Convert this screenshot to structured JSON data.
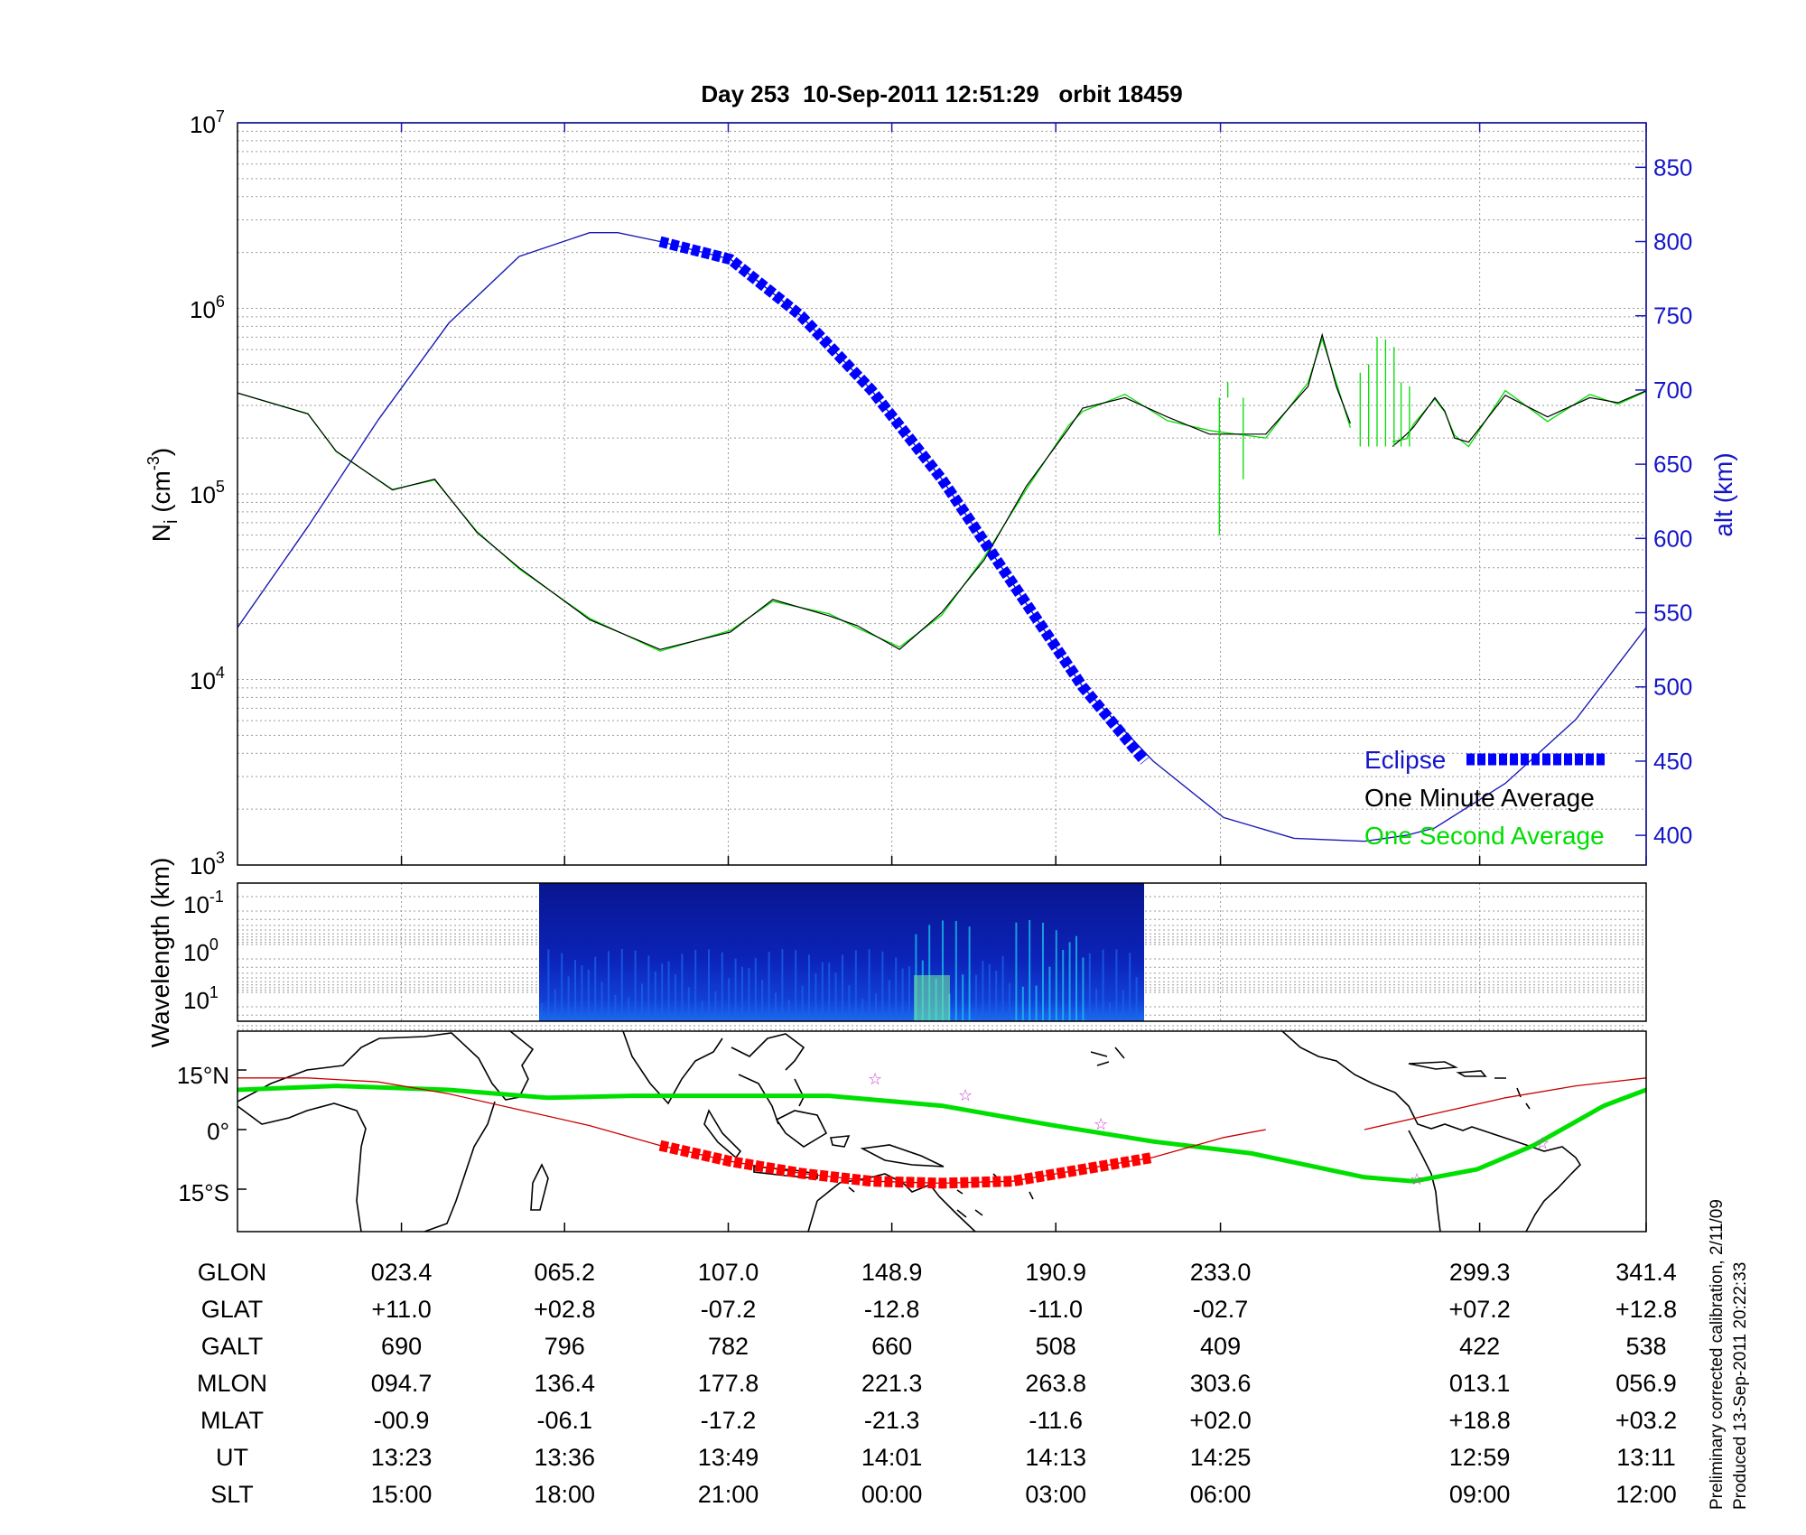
{
  "chart_data": [
    {
      "type": "line",
      "title": "Day 253  10-Sep-2011 12:51:29   orbit 18459",
      "ylabel_main": "N",
      "ylabel_sub": "i",
      "ylabel_unit_open": " (cm",
      "ylabel_unit_exp": "-3",
      "ylabel_unit_close": ")",
      "y_scale": "log",
      "ylim": [
        1000,
        10000000
      ],
      "y_tick_exponents": [
        "3",
        "4",
        "5",
        "6",
        "7"
      ],
      "y_tick_base": "10",
      "y2label": "alt (km)",
      "y2lim": [
        380,
        880
      ],
      "y2_ticks": [
        "400",
        "450",
        "500",
        "550",
        "600",
        "650",
        "700",
        "750",
        "800",
        "850"
      ],
      "x_ticks_glon": [
        "023.4",
        "065.2",
        "107.0",
        "148.9",
        "190.9",
        "233.0",
        "299.3",
        "341.4"
      ],
      "grid": true,
      "legend_position": "bottom-right",
      "colors": {
        "eclipse": "#0000ff",
        "minute": "#000000",
        "second": "#00dd00",
        "altitude": "#1a1ab4"
      },
      "series": [
        {
          "name": "One Minute Average",
          "x": [
            0,
            0.05,
            0.07,
            0.11,
            0.14,
            0.17,
            0.2,
            0.25,
            0.3,
            0.35,
            0.38,
            0.42,
            0.44,
            0.47,
            0.5,
            0.53,
            0.56,
            0.59,
            0.6,
            0.63,
            0.66,
            0.69,
            0.73,
            0.76,
            0.77,
            0.78,
            0.79,
            0.8,
            0.81,
            0.82,
            0.83,
            0.835,
            0.85,
            0.857,
            0.864,
            0.874,
            0.9,
            0.93,
            0.96,
            0.98,
            1.0
          ],
          "values": [
            350000,
            270000,
            170000,
            105000,
            120000,
            62000,
            40000,
            21000,
            14500,
            18000,
            27000,
            22000,
            19500,
            14500,
            23000,
            44000,
            110000,
            225000,
            290000,
            330000,
            260000,
            210000,
            210000,
            380000,
            720000,
            380000,
            240000,
            160000,
            155000,
            180000,
            210000,
            230000,
            330000,
            280000,
            200000,
            190000,
            340000,
            260000,
            330000,
            310000,
            360000
          ]
        },
        {
          "name": "Eclipse",
          "x": [
            0.3,
            0.35,
            0.4,
            0.45,
            0.5,
            0.55,
            0.6,
            0.644
          ],
          "altitude_km": [
            800,
            788,
            750,
            700,
            640,
            570,
            500,
            450
          ]
        },
        {
          "name": "altitude",
          "x": [
            0,
            0.05,
            0.1,
            0.15,
            0.2,
            0.25,
            0.27,
            0.3,
            0.35,
            0.4,
            0.45,
            0.5,
            0.55,
            0.6,
            0.65,
            0.7,
            0.75,
            0.8,
            0.83,
            0.85,
            0.9,
            0.95,
            1.0
          ],
          "values": [
            540,
            608,
            680,
            745,
            790,
            806,
            806,
            800,
            788,
            750,
            700,
            640,
            570,
            500,
            450,
            412,
            398,
            396,
            400,
            405,
            435,
            478,
            540
          ]
        }
      ]
    },
    {
      "type": "heatmap",
      "ylabel": "Wavelength (km)",
      "y_tick_base": "10",
      "y_tick_exponents": [
        "-1",
        "0",
        "1"
      ]
    },
    {
      "type": "line",
      "panel": "map",
      "y_ticks": [
        "15°N",
        "0°",
        "15°S"
      ],
      "colors": {
        "magnetic_equator": "#00e000",
        "orbit_eclipse": "#ff0000",
        "orbit_track": "#c80000",
        "stars": "#cc44cc",
        "coast": "#000000"
      },
      "series": [
        {
          "name": "magnetic equator",
          "x": [
            0,
            0.07,
            0.15,
            0.22,
            0.28,
            0.35,
            0.42,
            0.5,
            0.58,
            0.65,
            0.72,
            0.8,
            0.835,
            0.88,
            0.92,
            0.97,
            1.0
          ],
          "lat": [
            10,
            11,
            10,
            8,
            8.5,
            8.5,
            8.5,
            6,
            1,
            -3,
            -6,
            -12,
            -13,
            -10,
            -4,
            6,
            10
          ]
        },
        {
          "name": "orbit",
          "x": [
            0,
            0.05,
            0.1,
            0.15,
            0.2,
            0.25,
            0.3,
            0.35,
            0.4,
            0.45,
            0.5,
            0.55,
            0.6,
            0.65,
            0.7,
            0.73
          ],
          "lat": [
            13,
            13,
            12,
            9,
            5,
            1,
            -4,
            -8,
            -11,
            -13,
            -13.5,
            -13,
            -10,
            -7,
            -2,
            0
          ]
        },
        {
          "name": "orbit (end segment)",
          "x": [
            0.8,
            0.85,
            0.9,
            0.95,
            1.0
          ],
          "lat": [
            0,
            4,
            8,
            11,
            13
          ]
        }
      ]
    }
  ],
  "legend": {
    "eclipse": "Eclipse",
    "minute": "One Minute Average",
    "second": "One Second Average"
  },
  "table": {
    "labels": [
      "GLON",
      "GLAT",
      "GALT",
      "MLON",
      "MLAT",
      "UT",
      "SLT"
    ],
    "columns": [
      [
        "023.4",
        "+11.0",
        "690",
        "094.7",
        "-00.9",
        "13:23",
        "15:00"
      ],
      [
        "065.2",
        "+02.8",
        "796",
        "136.4",
        "-06.1",
        "13:36",
        "18:00"
      ],
      [
        "107.0",
        "-07.2",
        "782",
        "177.8",
        "-17.2",
        "13:49",
        "21:00"
      ],
      [
        "148.9",
        "-12.8",
        "660",
        "221.3",
        "-21.3",
        "14:01",
        "00:00"
      ],
      [
        "190.9",
        "-11.0",
        "508",
        "263.8",
        "-11.6",
        "14:13",
        "03:00"
      ],
      [
        "233.0",
        "-02.7",
        "409",
        "303.6",
        "+02.0",
        "14:25",
        "06:00"
      ],
      [
        "299.3",
        "+07.2",
        "422",
        "013.1",
        "+18.8",
        "12:59",
        "09:00"
      ],
      [
        "341.4",
        "+12.8",
        "538",
        "056.9",
        "+03.2",
        "13:11",
        "12:00"
      ]
    ]
  },
  "footer": {
    "line1": "Preliminary corrected calibration, 2/11/09",
    "line2": "Produced 13-Sep-2011 20:22:33"
  }
}
